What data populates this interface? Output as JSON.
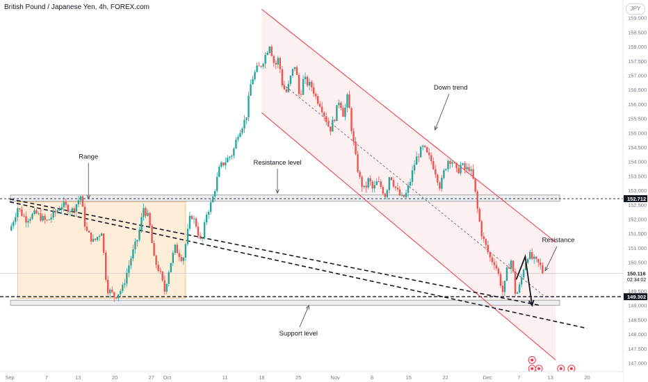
{
  "header": {
    "title": "British Pound / Japanese Yen, 4h, FOREX.com",
    "currency_badge": "JPY"
  },
  "colors": {
    "up": "#26a69a",
    "down": "#ef5350",
    "channel_line": "#f23645",
    "channel_fill": "#fce4e4",
    "range_fill": "#fde3c0",
    "level_zone": "#eceff1",
    "price_badge": "#131722"
  },
  "chart_data": {
    "type": "candlestick",
    "symbol": "British Pound / Japanese Yen",
    "timeframe": "4h",
    "source": "FOREX.com",
    "currency": "JPY",
    "ylim": [
      146.5,
      159.5
    ],
    "y_ticks": [
      {
        "value": 159.0,
        "label": "159.000"
      },
      {
        "value": 158.5,
        "label": "158.500"
      },
      {
        "value": 158.0,
        "label": "158.000"
      },
      {
        "value": 157.5,
        "label": "157.500"
      },
      {
        "value": 157.0,
        "label": "157.000"
      },
      {
        "value": 156.5,
        "label": "156.500"
      },
      {
        "value": 156.0,
        "label": "156.000"
      },
      {
        "value": 155.5,
        "label": "155.500"
      },
      {
        "value": 155.0,
        "label": "155.000"
      },
      {
        "value": 154.5,
        "label": "154.500"
      },
      {
        "value": 154.0,
        "label": "154.000"
      },
      {
        "value": 153.5,
        "label": "153.500"
      },
      {
        "value": 153.0,
        "label": "153.000"
      },
      {
        "value": 152.5,
        "label": "152.500"
      },
      {
        "value": 152.0,
        "label": "152.000"
      },
      {
        "value": 151.5,
        "label": "151.500"
      },
      {
        "value": 151.0,
        "label": "151.000"
      },
      {
        "value": 150.5,
        "label": "150.500"
      },
      {
        "value": 149.5,
        "label": "149.500"
      },
      {
        "value": 149.0,
        "label": "149.000"
      },
      {
        "value": 148.5,
        "label": "148.500"
      },
      {
        "value": 148.0,
        "label": "148.000"
      },
      {
        "value": 147.5,
        "label": "147.500"
      },
      {
        "value": 147.0,
        "label": "147.000"
      },
      {
        "value": 146.5,
        "label": "146.500"
      }
    ],
    "x_ticks": [
      {
        "day": 0,
        "label": "Sep"
      },
      {
        "day": 7,
        "label": "7"
      },
      {
        "day": 13,
        "label": "13"
      },
      {
        "day": 20,
        "label": "20"
      },
      {
        "day": 27,
        "label": "27"
      },
      {
        "day": 30,
        "label": "Oct"
      },
      {
        "day": 41,
        "label": "11"
      },
      {
        "day": 48,
        "label": "18"
      },
      {
        "day": 55,
        "label": "25"
      },
      {
        "day": 62,
        "label": "Nov"
      },
      {
        "day": 69,
        "label": "8"
      },
      {
        "day": 76,
        "label": "15"
      },
      {
        "day": 83,
        "label": "22"
      },
      {
        "day": 91,
        "label": "Dec"
      },
      {
        "day": 97,
        "label": "7"
      },
      {
        "day": 103,
        "label": "13"
      },
      {
        "day": 110,
        "label": "20"
      }
    ],
    "price_path": [
      [
        0,
        151.6
      ],
      [
        1.5,
        152.4
      ],
      [
        3,
        152.0
      ],
      [
        5,
        152.2
      ],
      [
        7,
        151.9
      ],
      [
        8.5,
        152.2
      ],
      [
        10,
        152.5
      ],
      [
        12,
        152.3
      ],
      [
        13.5,
        152.8
      ],
      [
        14.5,
        151.6
      ],
      [
        16,
        151.2
      ],
      [
        17.5,
        151.6
      ],
      [
        18.5,
        149.6
      ],
      [
        20,
        149.3
      ],
      [
        21.5,
        149.6
      ],
      [
        23,
        150.6
      ],
      [
        24.5,
        151.4
      ],
      [
        25.5,
        152.4
      ],
      [
        26.5,
        152.0
      ],
      [
        27.5,
        150.6
      ],
      [
        28.5,
        150.2
      ],
      [
        29.5,
        149.5
      ],
      [
        30.5,
        150.4
      ],
      [
        31.5,
        151.0
      ],
      [
        33,
        150.6
      ],
      [
        34.5,
        152.2
      ],
      [
        35.5,
        151.8
      ],
      [
        36.5,
        151.1
      ],
      [
        37.5,
        152.2
      ],
      [
        38.5,
        152.6
      ],
      [
        40,
        153.8
      ],
      [
        41,
        154.0
      ],
      [
        42.5,
        154.3
      ],
      [
        43.5,
        155.0
      ],
      [
        45,
        155.5
      ],
      [
        46,
        156.8
      ],
      [
        47,
        157.2
      ],
      [
        47.7,
        157.3
      ],
      [
        48.5,
        157.6
      ],
      [
        49.5,
        158.1
      ],
      [
        50.5,
        157.3
      ],
      [
        51.2,
        157.6
      ],
      [
        52,
        156.6
      ],
      [
        52.8,
        156.4
      ],
      [
        53.6,
        157.0
      ],
      [
        54.4,
        157.4
      ],
      [
        55.2,
        156.2
      ],
      [
        56,
        156.9
      ],
      [
        56.8,
        156.7
      ],
      [
        57.6,
        156.6
      ],
      [
        58.4,
        156.2
      ],
      [
        59.2,
        156.0
      ],
      [
        60,
        155.6
      ],
      [
        61,
        155.1
      ],
      [
        62,
        155.6
      ],
      [
        62.8,
        156.2
      ],
      [
        63.6,
        155.6
      ],
      [
        64.4,
        156.3
      ],
      [
        65.2,
        155.0
      ],
      [
        66,
        154.0
      ],
      [
        66.8,
        153.3
      ],
      [
        67.6,
        153.0
      ],
      [
        68.4,
        153.4
      ],
      [
        69.2,
        153.0
      ],
      [
        70,
        153.3
      ],
      [
        70.8,
        153.1
      ],
      [
        71.6,
        152.8
      ],
      [
        72.4,
        153.6
      ],
      [
        73.2,
        153.2
      ],
      [
        74,
        152.9
      ],
      [
        74.8,
        152.7
      ],
      [
        75.6,
        152.9
      ],
      [
        76.4,
        153.4
      ],
      [
        77.2,
        154.0
      ],
      [
        78,
        154.3
      ],
      [
        78.8,
        154.5
      ],
      [
        79.6,
        154.2
      ],
      [
        80.4,
        154.0
      ],
      [
        81.2,
        153.6
      ],
      [
        82,
        153.1
      ],
      [
        82.8,
        153.7
      ],
      [
        83.6,
        154.1
      ],
      [
        84.4,
        154.0
      ],
      [
        85.2,
        153.6
      ],
      [
        86,
        153.9
      ],
      [
        86.8,
        153.7
      ],
      [
        87.6,
        153.8
      ],
      [
        88.4,
        153.3
      ],
      [
        89.2,
        152.2
      ],
      [
        90,
        151.4
      ],
      [
        90.8,
        151.0
      ],
      [
        91.6,
        150.6
      ],
      [
        92.4,
        150.5
      ],
      [
        93.2,
        150.0
      ],
      [
        94,
        149.4
      ],
      [
        94.8,
        150.3
      ],
      [
        95.6,
        150.6
      ],
      [
        96.4,
        149.3
      ],
      [
        97.2,
        149.7
      ],
      [
        98,
        150.4
      ],
      [
        98.8,
        150.8
      ],
      [
        99.6,
        150.6
      ],
      [
        100.3,
        150.5
      ],
      [
        101,
        150.4
      ],
      [
        101.6,
        150.116
      ]
    ],
    "current_price": {
      "value": 150.116,
      "label": "150.116",
      "countdown": "02:34:02"
    },
    "levels": [
      {
        "name": "Resistance level",
        "value": 152.712,
        "label": "152.712"
      },
      {
        "name": "Support level",
        "value": 149.302,
        "label": "149.302"
      }
    ],
    "level_zones": [
      {
        "name": "resistance-zone",
        "low": 152.62,
        "high": 152.84
      },
      {
        "name": "support-zone",
        "low": 149.0,
        "high": 149.18
      }
    ],
    "range_box": {
      "x0": 1.5,
      "x1": 33.5,
      "low": 149.25,
      "high": 152.6
    },
    "channel": {
      "upper": [
        [
          48,
          159.3
        ],
        [
          104,
          151.2
        ]
      ],
      "lower": [
        [
          48,
          155.7
        ],
        [
          104,
          147.1
        ]
      ],
      "mid": [
        [
          52,
          156.7
        ],
        [
          102,
          149.3
        ]
      ]
    },
    "dashed_trendlines": [
      {
        "from": [
          0,
          152.6
        ],
        "to": [
          110,
          148.2
        ]
      },
      {
        "from": [
          0,
          152.7
        ],
        "to": [
          101,
          149.0
        ]
      }
    ],
    "projection": [
      [
        96.5,
        149.9
      ],
      [
        98.2,
        150.7
      ],
      [
        99.5,
        149.0
      ]
    ],
    "annotations": [
      {
        "text": "Range",
        "at": [
          15,
          154.1
        ],
        "arrow_to": [
          15,
          152.7
        ]
      },
      {
        "text": "Resistance level",
        "at": [
          51,
          153.9
        ],
        "arrow_to": [
          51,
          152.9
        ]
      },
      {
        "text": "Down trend",
        "at": [
          84,
          156.5
        ],
        "arrow_to": [
          81,
          155.1
        ]
      },
      {
        "text": "Resistance",
        "at": [
          104.5,
          151.2
        ],
        "arrow_to": [
          102,
          150.2
        ]
      },
      {
        "text": "Support level",
        "at": [
          55,
          147.95
        ],
        "arrow_to": [
          57,
          149.0
        ]
      }
    ],
    "event_markers": [
      {
        "day": 99.5,
        "value": 147.1
      },
      {
        "day": 99.5,
        "value": 146.8
      },
      {
        "day": 100.8,
        "value": 146.8
      },
      {
        "day": 105,
        "value": 146.8
      },
      {
        "day": 107,
        "value": 146.8
      }
    ]
  }
}
